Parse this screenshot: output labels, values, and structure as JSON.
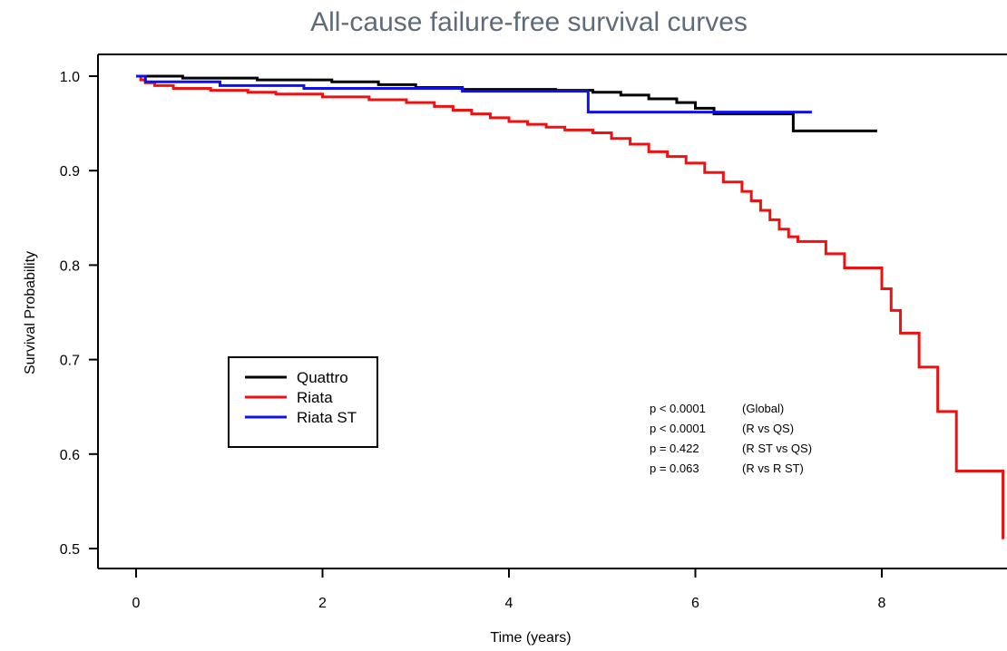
{
  "chart_data": {
    "type": "line",
    "step": true,
    "title": "All-cause failure-free survival curves",
    "xlabel": "Time (years)",
    "ylabel": "Survival Probability",
    "xlim": [
      -0.6,
      9.3
    ],
    "ylim": [
      0.48,
      1.04
    ],
    "xticks": [
      0,
      2,
      4,
      6,
      8
    ],
    "yticks": [
      0.5,
      0.6,
      0.7,
      0.8,
      0.9,
      1.0
    ],
    "xtick_labels": [
      "0",
      "2",
      "4",
      "6",
      "8"
    ],
    "ytick_labels": [
      "0.5",
      "0.6",
      "0.7",
      "0.8",
      "0.9",
      "1.0"
    ],
    "grid": false,
    "legend_position": "left-middle",
    "colors": {
      "Quattro": "#000000",
      "Riata": "#ee1111",
      "Riata ST": "#1010ee"
    },
    "series": [
      {
        "name": "Quattro",
        "x": [
          0,
          0.5,
          1.3,
          2.1,
          2.6,
          3.0,
          3.5,
          4.5,
          4.9,
          5.2,
          5.5,
          5.8,
          6.0,
          6.2,
          7.05,
          7.95
        ],
        "y": [
          1.0,
          0.998,
          0.996,
          0.994,
          0.991,
          0.988,
          0.986,
          0.985,
          0.983,
          0.98,
          0.976,
          0.972,
          0.966,
          0.96,
          0.942,
          0.942
        ]
      },
      {
        "name": "Riata",
        "x": [
          0,
          0.05,
          0.1,
          0.2,
          0.4,
          0.8,
          1.2,
          1.5,
          2.0,
          2.5,
          2.9,
          3.2,
          3.4,
          3.6,
          3.8,
          4.0,
          4.2,
          4.4,
          4.6,
          4.9,
          5.1,
          5.3,
          5.5,
          5.7,
          5.9,
          6.1,
          6.3,
          6.5,
          6.6,
          6.7,
          6.8,
          6.9,
          7.0,
          7.1,
          7.2,
          7.4,
          7.6,
          7.8,
          8.0,
          8.1,
          8.2,
          8.4,
          8.6,
          8.8,
          9.3
        ],
        "y": [
          1.0,
          0.996,
          0.993,
          0.99,
          0.987,
          0.985,
          0.983,
          0.981,
          0.978,
          0.975,
          0.972,
          0.968,
          0.964,
          0.96,
          0.956,
          0.952,
          0.949,
          0.946,
          0.943,
          0.94,
          0.934,
          0.928,
          0.92,
          0.915,
          0.908,
          0.898,
          0.888,
          0.878,
          0.868,
          0.858,
          0.848,
          0.838,
          0.83,
          0.825,
          0.825,
          0.812,
          0.797,
          0.797,
          0.775,
          0.752,
          0.728,
          0.692,
          0.645,
          0.582,
          0.51
        ],
        "y_end": 0.51
      },
      {
        "name": "Riata ST",
        "x": [
          0,
          0.1,
          0.9,
          1.8,
          3.5,
          4.85,
          7.25
        ],
        "y": [
          1.0,
          0.994,
          0.99,
          0.987,
          0.984,
          0.962,
          0.962
        ]
      }
    ],
    "annotations": [
      {
        "stat": "p < 0.0001",
        "label": "(Global)"
      },
      {
        "stat": "p < 0.0001",
        "label": "(R vs QS)"
      },
      {
        "stat": "p = 0.422",
        "label": "(R ST vs QS)"
      },
      {
        "stat": "p = 0.063",
        "label": "(R vs R ST)"
      }
    ]
  }
}
